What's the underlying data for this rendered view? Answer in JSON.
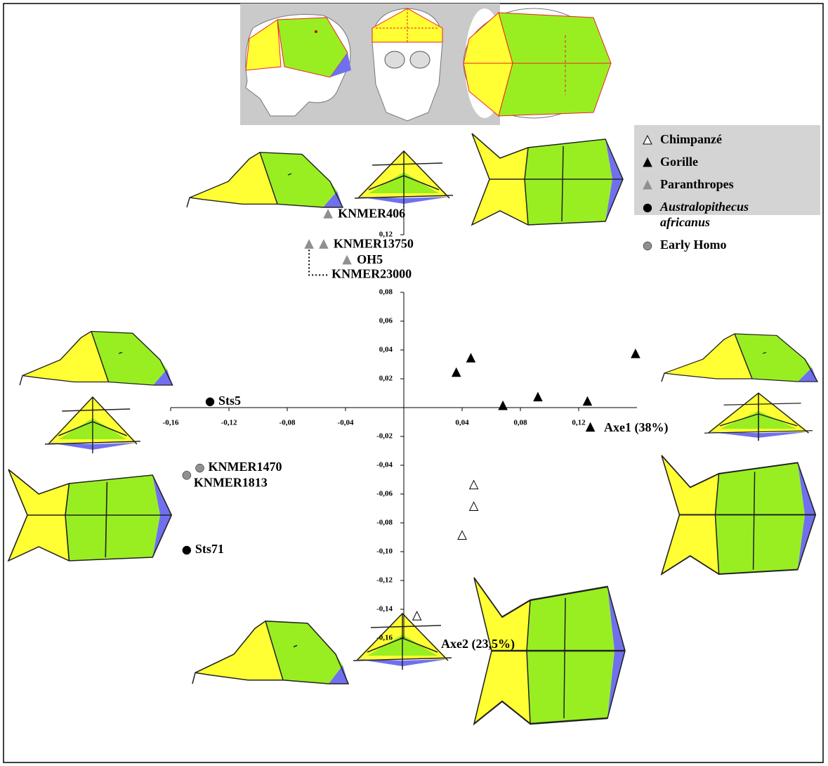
{
  "chart_data": {
    "type": "scatter",
    "xlim": [
      -0.16,
      0.16
    ],
    "ylim": [
      -0.16,
      0.14
    ],
    "xticks": [
      {
        "value": -0.16,
        "label": "-0,16"
      },
      {
        "value": -0.12,
        "label": "-0,12"
      },
      {
        "value": -0.08,
        "label": "-0,08"
      },
      {
        "value": -0.04,
        "label": "-0,04"
      },
      {
        "value": 0.04,
        "label": "0,04"
      },
      {
        "value": 0.08,
        "label": "0,08"
      },
      {
        "value": 0.12,
        "label": "0,12"
      }
    ],
    "yticks": [
      {
        "value": 0.12,
        "label": "0,12"
      },
      {
        "value": 0.08,
        "label": "0,08"
      },
      {
        "value": 0.06,
        "label": "0,06"
      },
      {
        "value": 0.04,
        "label": "0,04"
      },
      {
        "value": 0.02,
        "label": "0,02"
      },
      {
        "value": -0.02,
        "label": "-0,02"
      },
      {
        "value": -0.04,
        "label": "-0,04"
      },
      {
        "value": -0.06,
        "label": "-0,06"
      },
      {
        "value": -0.08,
        "label": "-0,08"
      },
      {
        "value": -0.1,
        "label": "-0,10"
      },
      {
        "value": -0.12,
        "label": "-0,12"
      },
      {
        "value": -0.14,
        "label": "-0,14"
      },
      {
        "value": -0.16,
        "label": "-0,16"
      }
    ],
    "x_axis_label": "Axe1 (38%)",
    "y_axis_label": "Axe2 (23,5%)",
    "series": [
      {
        "name": "Chimpanzé",
        "marker": "triangle-open",
        "color": "#ffffff",
        "x": [
          0.048,
          0.048,
          0.04,
          0.009
        ],
        "y": [
          -0.054,
          -0.069,
          -0.089,
          -0.145
        ]
      },
      {
        "name": "Gorille",
        "marker": "triangle",
        "color": "#000000",
        "x": [
          0.046,
          0.036,
          0.068,
          0.092,
          0.126,
          0.159,
          0.128
        ],
        "y": [
          0.034,
          0.024,
          0.001,
          0.007,
          0.004,
          0.037,
          -0.014
        ]
      },
      {
        "name": "Paranthropes",
        "marker": "triangle",
        "color": "#909090",
        "x": [
          -0.052,
          -0.055,
          -0.065,
          -0.039
        ],
        "y": [
          0.134,
          0.113,
          0.113,
          0.102
        ],
        "labels": [
          "KNMER406",
          "KNMER13750",
          "KNMER23000",
          "OH5"
        ]
      },
      {
        "name": "Australopithecus africanus",
        "marker": "circle",
        "color": "#000000",
        "x": [
          -0.133,
          -0.149
        ],
        "y": [
          0.004,
          -0.099
        ],
        "labels": [
          "Sts5",
          "Sts71"
        ]
      },
      {
        "name": "Early Homo",
        "marker": "circle",
        "color": "#909090",
        "x": [
          -0.14,
          -0.149
        ],
        "y": [
          -0.042,
          -0.047
        ],
        "labels": [
          "KNMER1470",
          "KNMER1813"
        ]
      }
    ]
  }
}
